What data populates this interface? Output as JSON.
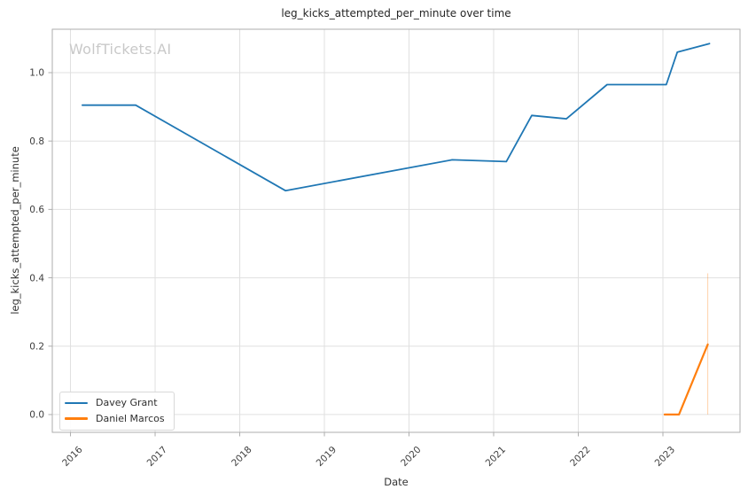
{
  "watermark": "WolfTickets.AI",
  "chart_data": {
    "type": "line",
    "title": "leg_kicks_attempted_per_minute over time",
    "xlabel": "Date",
    "ylabel": "leg_kicks_attempted_per_minute",
    "xlim": [
      2015.785,
      2023.911
    ],
    "ylim": [
      -0.052,
      1.127
    ],
    "x_ticks": [
      2016,
      2017,
      2018,
      2019,
      2020,
      2021,
      2022,
      2023
    ],
    "y_ticks": [
      0.0,
      0.2,
      0.4,
      0.6,
      0.8,
      1.0
    ],
    "grid": true,
    "grid_color": "#e0e0e0",
    "spine_color": "#aeaeae",
    "tick_label_color": "#3d3d3d",
    "legend_position": "lower-left",
    "series": [
      {
        "name": "Davey Grant",
        "color": "#1f77b4",
        "line_width": 1.8,
        "x": [
          2016.14,
          2016.77,
          2018.54,
          2020.51,
          2021.15,
          2021.45,
          2021.86,
          2022.34,
          2023.04,
          2023.17,
          2023.55
        ],
        "y": [
          0.905,
          0.905,
          0.655,
          0.745,
          0.74,
          0.875,
          0.865,
          0.965,
          0.965,
          1.06,
          1.085
        ]
      },
      {
        "name": "Daniel Marcos",
        "color": "#ff7f0e",
        "line_width": 2.2,
        "x": [
          2023.02,
          2023.19,
          2023.53
        ],
        "y": [
          0.0,
          0.0,
          0.205
        ]
      }
    ],
    "annotations": [
      {
        "type": "vline",
        "x": 2023.53,
        "y0": 0.0,
        "y1": 0.413,
        "color": "rgba(255,127,14,0.35)"
      }
    ]
  }
}
